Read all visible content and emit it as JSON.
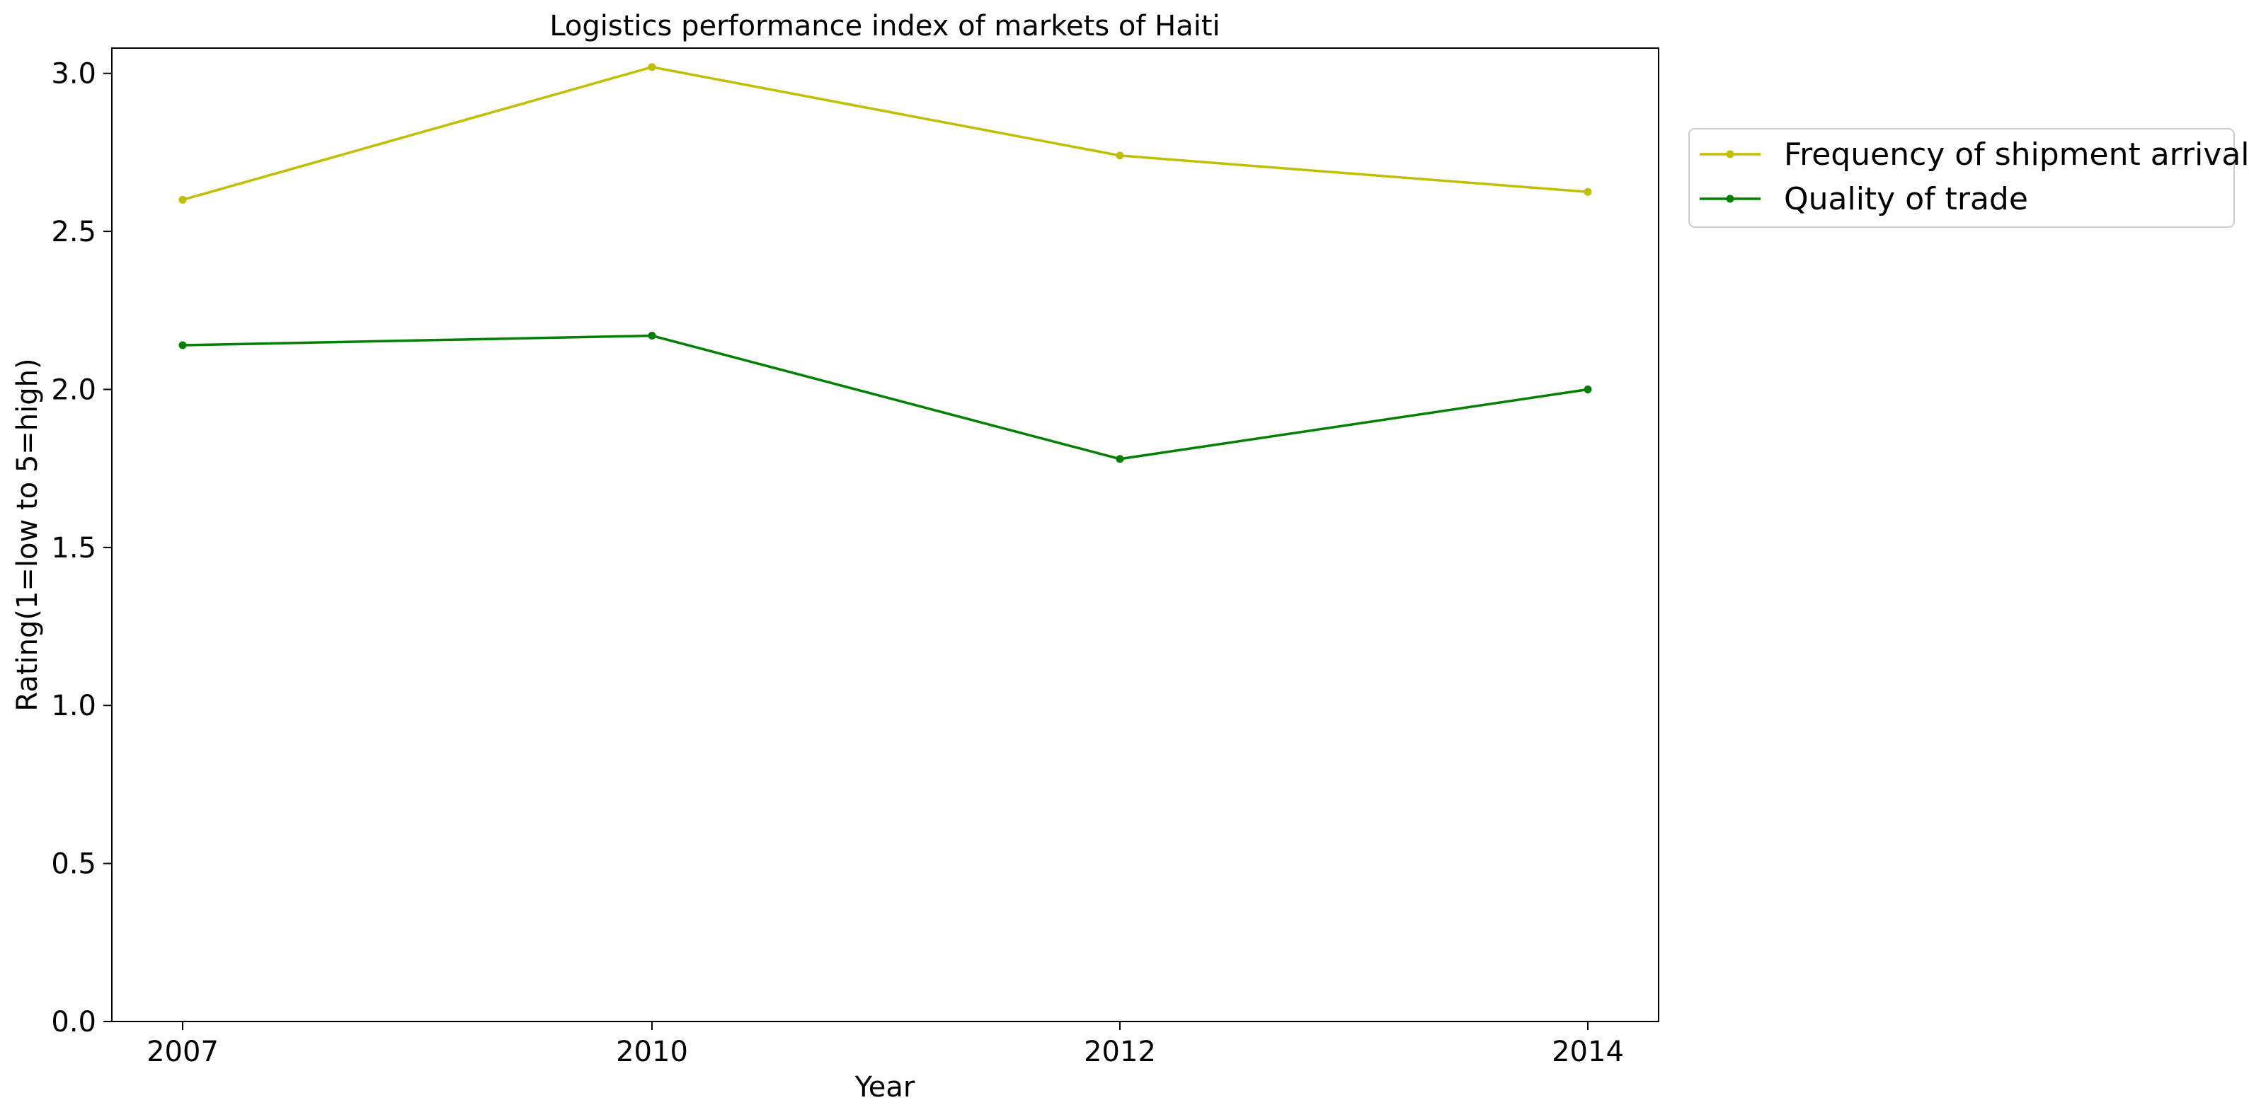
{
  "chart_data": {
    "type": "line",
    "title": "Logistics performance index of markets of Haiti",
    "xlabel": "Year",
    "ylabel": "Rating(1=low to 5=high)",
    "categories": [
      "2007",
      "2010",
      "2012",
      "2014"
    ],
    "ylim": [
      0,
      3.08
    ],
    "yticks": [
      "0.0",
      "0.5",
      "1.0",
      "1.5",
      "2.0",
      "2.5",
      "3.0"
    ],
    "grid": false,
    "legend_position": "outside top-right",
    "series": [
      {
        "name": "Frequency of shipment arrival",
        "color": "#bfbf00",
        "values": [
          2.6,
          3.02,
          2.74,
          2.625
        ]
      },
      {
        "name": "Quality of trade",
        "color": "#008000",
        "values": [
          2.14,
          2.17,
          1.78,
          2.0
        ]
      }
    ]
  }
}
